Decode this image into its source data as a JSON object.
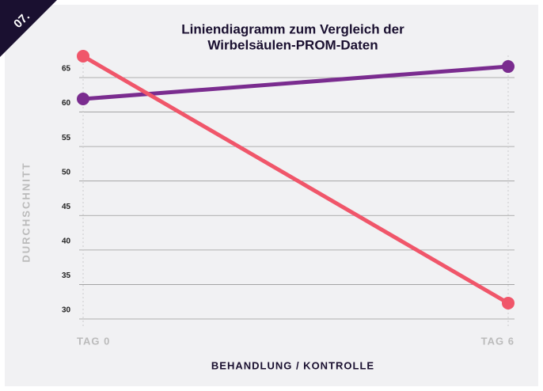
{
  "badge": "07.",
  "chart_data": {
    "type": "line",
    "title": [
      "Liniendiagramm zum Vergleich der",
      "Wirbelsäulen-PROM-Daten"
    ],
    "xlabel": "BEHANDLUNG / KONTROLLE",
    "ylabel": "DURCHSCHNITT",
    "categories": [
      "TAG 0",
      "TAG 6"
    ],
    "series": [
      {
        "color": "#7a2c8f",
        "values": [
          61.9,
          66.6
        ]
      },
      {
        "color": "#f0566a",
        "values": [
          68.1,
          32.3
        ]
      }
    ],
    "ylim": [
      30,
      70
    ],
    "yticks": [
      30,
      35,
      40,
      45,
      50,
      55,
      60,
      65
    ],
    "grid": true
  }
}
